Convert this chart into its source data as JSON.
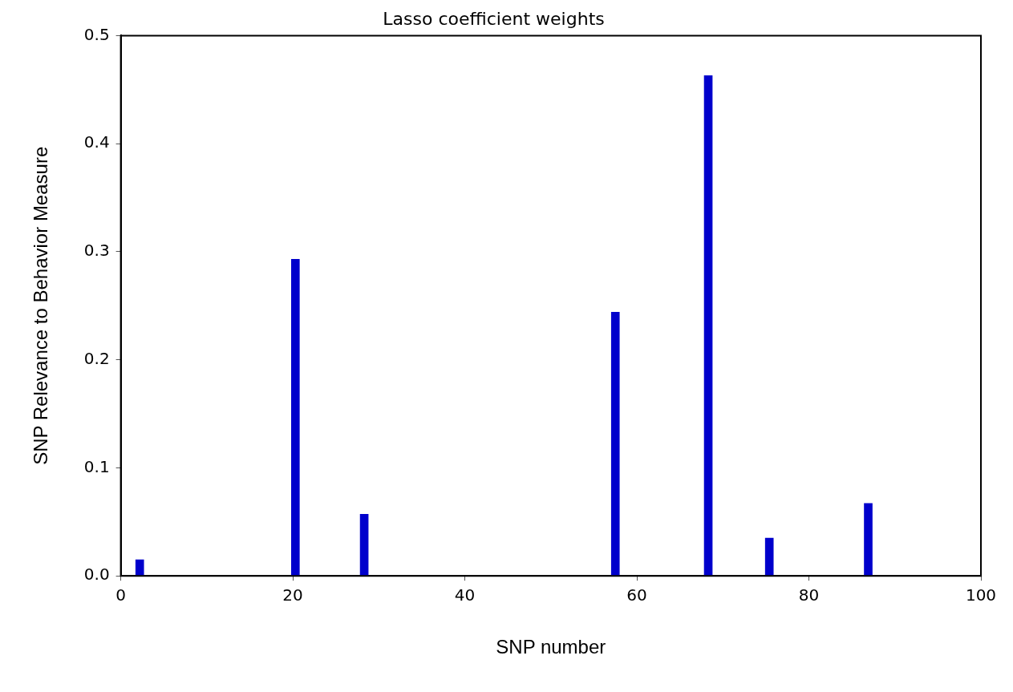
{
  "chart_data": {
    "type": "bar",
    "title": "Lasso coefficient weights",
    "xlabel": "SNP number",
    "ylabel": "SNP Relevance to Behavior Measure",
    "x": [
      2.2,
      20.3,
      28.3,
      57.5,
      68.3,
      75.4,
      86.9
    ],
    "values": [
      0.015,
      0.293,
      0.057,
      0.244,
      0.463,
      0.035,
      0.067
    ],
    "color": "#0000cc",
    "xlim": [
      0,
      100
    ],
    "xticks": [
      0,
      20,
      40,
      60,
      80,
      100
    ],
    "ylim": [
      0,
      0.5
    ],
    "yticks": [
      {
        "value": 0,
        "label": "0.0"
      },
      {
        "value": 0.1,
        "label": "0.1"
      },
      {
        "value": 0.2,
        "label": "0.2"
      },
      {
        "value": 0.3,
        "label": "0.3"
      },
      {
        "value": 0.4,
        "label": "0.4"
      },
      {
        "value": 0.5,
        "label": "0.5"
      }
    ],
    "grid": false
  }
}
